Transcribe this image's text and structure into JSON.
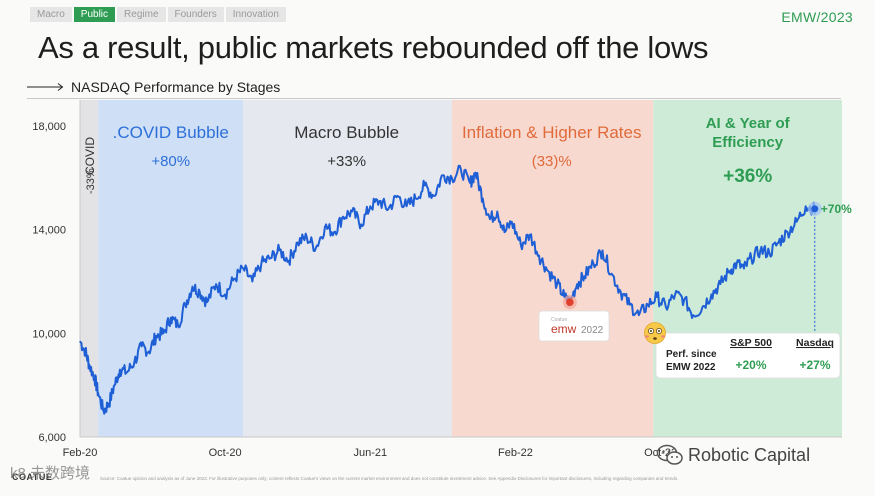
{
  "nav": {
    "tabs": [
      "Macro",
      "Public",
      "Regime",
      "Founders",
      "Innovation"
    ],
    "active_index": 1
  },
  "brand": "EMW/2023",
  "title": "As a result, public markets rebounded off the lows",
  "subtitle": "NASDAQ Performance by Stages",
  "colors": {
    "accent_green": "#2e9d53",
    "line_blue": "#1f5fd6",
    "covid_band": "#e3e3e5",
    "bubble_band": "#cfe0f6",
    "macro_band": "#e6e8ef",
    "inflation_band": "#f8d9d0",
    "ai_band": "#cdebd6"
  },
  "chart_data": {
    "type": "line",
    "title": "NASDAQ Performance by Stages",
    "x_ticks": [
      "Feb-20",
      "Oct-20",
      "Jun-21",
      "Feb-22",
      "Oct-22"
    ],
    "y_ticks": [
      "6,000",
      "10,000",
      "14,000",
      "18,000"
    ],
    "ylim": [
      6000,
      19000
    ],
    "series": [
      {
        "name": "NASDAQ",
        "x": [
          0,
          0.3,
          0.5,
          0.8,
          1.0,
          1.3,
          1.6,
          1.9,
          2.2,
          2.6,
          3.0,
          3.4,
          3.8,
          4.2,
          4.6,
          5.0,
          5.4,
          5.8,
          6.2,
          6.6,
          7.0,
          7.5,
          8.0,
          8.5,
          9.0,
          9.5,
          10.0,
          10.5,
          11.0,
          11.5,
          12.0,
          12.5,
          13.0,
          13.5,
          14.0,
          14.5,
          15.0,
          15.5,
          16.0,
          16.5,
          17.0,
          17.5,
          18.0,
          18.5,
          19.0,
          19.5,
          20.0,
          20.5,
          21.0,
          21.5,
          21.8,
          22.2,
          22.6,
          23.0,
          23.4,
          23.8,
          24.3,
          24.8,
          25.3,
          25.8,
          26.3,
          26.7,
          27.0,
          27.4,
          27.8,
          28.3,
          28.8,
          29.3,
          29.8,
          30.3,
          30.8,
          31.3,
          31.8,
          32.3,
          32.8,
          33.3,
          33.8,
          34.3,
          34.8,
          35.3,
          35.8,
          36.2,
          36.6,
          37.0,
          37.5,
          38.0,
          38.5,
          39.0,
          39.5,
          40.0,
          40.5
        ],
        "values": [
          9700,
          9300,
          8800,
          8300,
          7700,
          7000,
          7300,
          8000,
          8600,
          8500,
          8900,
          9500,
          9300,
          9900,
          10000,
          10600,
          10300,
          11100,
          11800,
          11600,
          11200,
          11900,
          11500,
          12100,
          12500,
          12000,
          12700,
          12900,
          13200,
          12800,
          13500,
          13700,
          13300,
          14100,
          13900,
          14500,
          14700,
          14200,
          14900,
          15100,
          14800,
          15300,
          14900,
          15200,
          15700,
          15300,
          16100,
          16000,
          16300,
          15800,
          16200,
          15200,
          14400,
          14700,
          13900,
          14300,
          13400,
          13800,
          13000,
          12400,
          11900,
          11400,
          11200,
          11900,
          12200,
          12700,
          13200,
          12300,
          11600,
          11100,
          10700,
          11100,
          11400,
          11000,
          11500,
          11300,
          10700,
          11000,
          11500,
          11900,
          12400,
          12700,
          12500,
          12900,
          13200,
          13100,
          13500,
          13900,
          14300,
          14900,
          14800
        ]
      }
    ],
    "stages": [
      {
        "name": "COVID",
        "change": "-33%"
      },
      {
        "name": ".COVID Bubble",
        "change": "+80%"
      },
      {
        "name": "Macro Bubble",
        "change": "+33%"
      },
      {
        "name": "Inflation & Higher Rates",
        "change": "(33)%"
      },
      {
        "name": "AI & Year of Efficiency",
        "change": "+36%"
      }
    ],
    "end_label": "+70%",
    "marker_label": {
      "small": "Coatue",
      "main": "emw",
      "year": "2022"
    },
    "callout": {
      "emoji_icon": "flushed-face-icon",
      "col1_header": "S&P 500",
      "col2_header": "Nasdaq",
      "row_label": "Perf. since EMW 2022",
      "sp500_value": "+20%",
      "nasdaq_value": "+27%"
    }
  },
  "footer": {
    "logo": "COATUE",
    "disclaimer": "Source: Coatue opinion and analysis as of June 2023. For illustrative purposes only; content reflects Coatue's views on the current market environment and does not constitute investment advice. See Appendix-Disclosures for important disclosures, including regarding companies and trends.",
    "watermark_left": "k8 未数跨境",
    "watermark_right": "Robotic Capital"
  }
}
